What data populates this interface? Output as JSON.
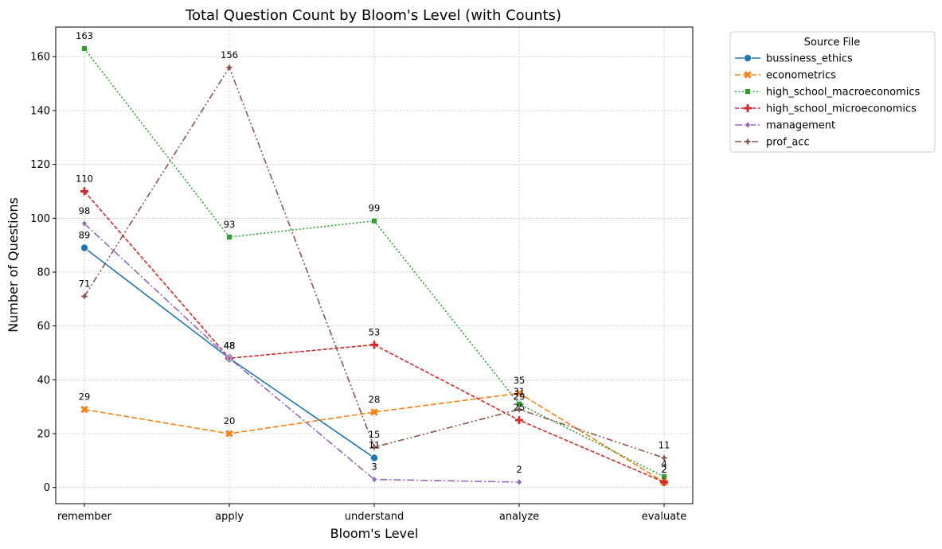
{
  "chart_data": {
    "type": "line",
    "title": "Total Question Count by Bloom's Level (with Counts)",
    "xlabel": "Bloom's Level",
    "ylabel": "Number of Questions",
    "categories": [
      "remember",
      "apply",
      "understand",
      "analyze",
      "evaluate"
    ],
    "ylim": [
      -6,
      171
    ],
    "yticks": [
      0,
      20,
      40,
      60,
      80,
      100,
      120,
      140,
      160
    ],
    "grid": true,
    "legend": {
      "title": "Source File",
      "placement": "outside-top-right"
    },
    "series": [
      {
        "name": "bussiness_ethics",
        "color": "#1f77b4",
        "dash": "solid",
        "marker": "circle",
        "values": [
          89,
          48,
          11,
          null,
          null
        ]
      },
      {
        "name": "econometrics",
        "color": "#ff7f0e",
        "dash": "dashed",
        "marker": "x",
        "values": [
          29,
          20,
          28,
          35,
          2
        ]
      },
      {
        "name": "high_school_macroeconomics",
        "color": "#2ca02c",
        "dash": "dotted",
        "marker": "square",
        "values": [
          163,
          93,
          99,
          31,
          4
        ]
      },
      {
        "name": "high_school_microeconomics",
        "color": "#d62728",
        "dash": "densedash",
        "marker": "plus",
        "values": [
          110,
          48,
          53,
          25,
          2
        ]
      },
      {
        "name": "management",
        "color": "#9467bd",
        "dash": "dashdot",
        "marker": "diamond",
        "values": [
          98,
          48,
          3,
          2,
          null
        ]
      },
      {
        "name": "prof_acc",
        "color": "#8c564b",
        "dash": "dashdotdot",
        "marker": "star4",
        "values": [
          71,
          156,
          15,
          29,
          11
        ]
      }
    ]
  }
}
